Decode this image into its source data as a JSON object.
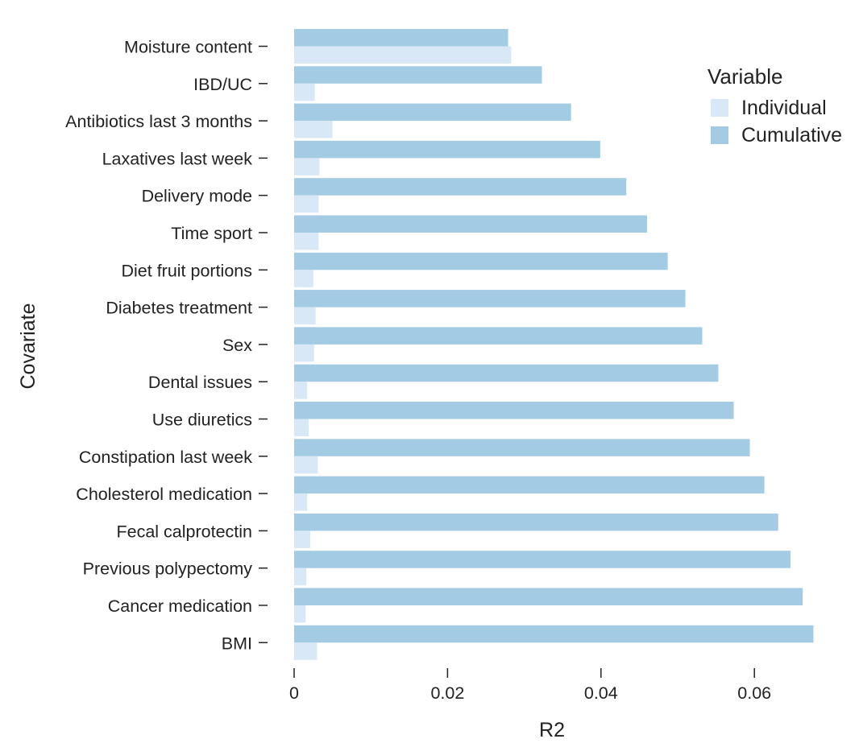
{
  "colors": {
    "individual": "#d9e8f6",
    "cumulative": "#a3cbe3"
  },
  "legend": {
    "title": "Variable",
    "items": [
      {
        "label": "Individual",
        "key": "individual"
      },
      {
        "label": "Cumulative",
        "key": "cumulative"
      }
    ]
  },
  "chart_data": {
    "type": "bar",
    "orientation": "horizontal",
    "xlabel": "R2",
    "ylabel": "Covariate",
    "xlim": [
      0,
      0.068
    ],
    "xticks": [
      0,
      0.02,
      0.04,
      0.06
    ],
    "xtick_labels": [
      "0",
      "0.02",
      "0.04",
      "0.06"
    ],
    "grid": false,
    "legend_position": "top-right",
    "categories": [
      "Moisture content",
      "IBD/UC",
      "Antibiotics last 3 months",
      "Laxatives last week",
      "Delivery mode",
      "Time sport",
      "Diet fruit portions",
      "Diabetes treatment",
      "Sex",
      "Dental issues",
      "Use diuretics",
      "Constipation last week",
      "Cholesterol medication",
      "Fecal calprotectin",
      "Previous polypectomy",
      "Cancer medication",
      "BMI"
    ],
    "series": [
      {
        "name": "Cumulative",
        "key": "cumulative",
        "values": [
          0.0279,
          0.0323,
          0.0361,
          0.0399,
          0.0433,
          0.046,
          0.0487,
          0.051,
          0.0532,
          0.0553,
          0.0573,
          0.0594,
          0.0613,
          0.0631,
          0.0647,
          0.0663,
          0.0677
        ]
      },
      {
        "name": "Individual",
        "key": "individual",
        "values": [
          0.0283,
          0.0027,
          0.005,
          0.0033,
          0.0032,
          0.0032,
          0.0025,
          0.0028,
          0.0026,
          0.0017,
          0.0019,
          0.0031,
          0.0017,
          0.0021,
          0.0016,
          0.0015,
          0.003
        ]
      }
    ]
  }
}
